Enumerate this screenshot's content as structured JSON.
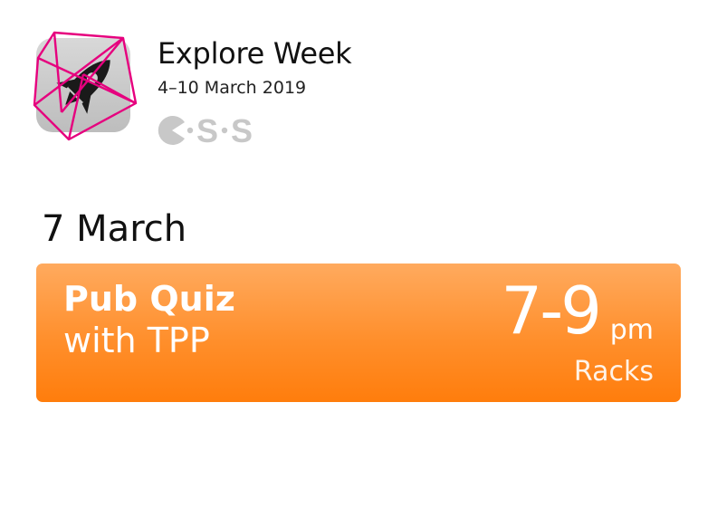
{
  "header": {
    "title": "Explore Week",
    "dates": "4–10 March 2019",
    "logo_icon": "rocket-icon",
    "org_mark": "C·S·S"
  },
  "day": {
    "label": "7 March"
  },
  "event": {
    "title_line1": "Pub Quiz",
    "title_line2": "with TPP",
    "time": "7-9",
    "time_unit": "pm",
    "venue": "Racks"
  },
  "colors": {
    "accent_magenta": "#e6007e",
    "card_orange_top": "#ffaa5e",
    "card_orange_bottom": "#ff7d0c",
    "icon_bg_gray": "#cfcfcf",
    "mark_gray": "#c8c8c8"
  }
}
